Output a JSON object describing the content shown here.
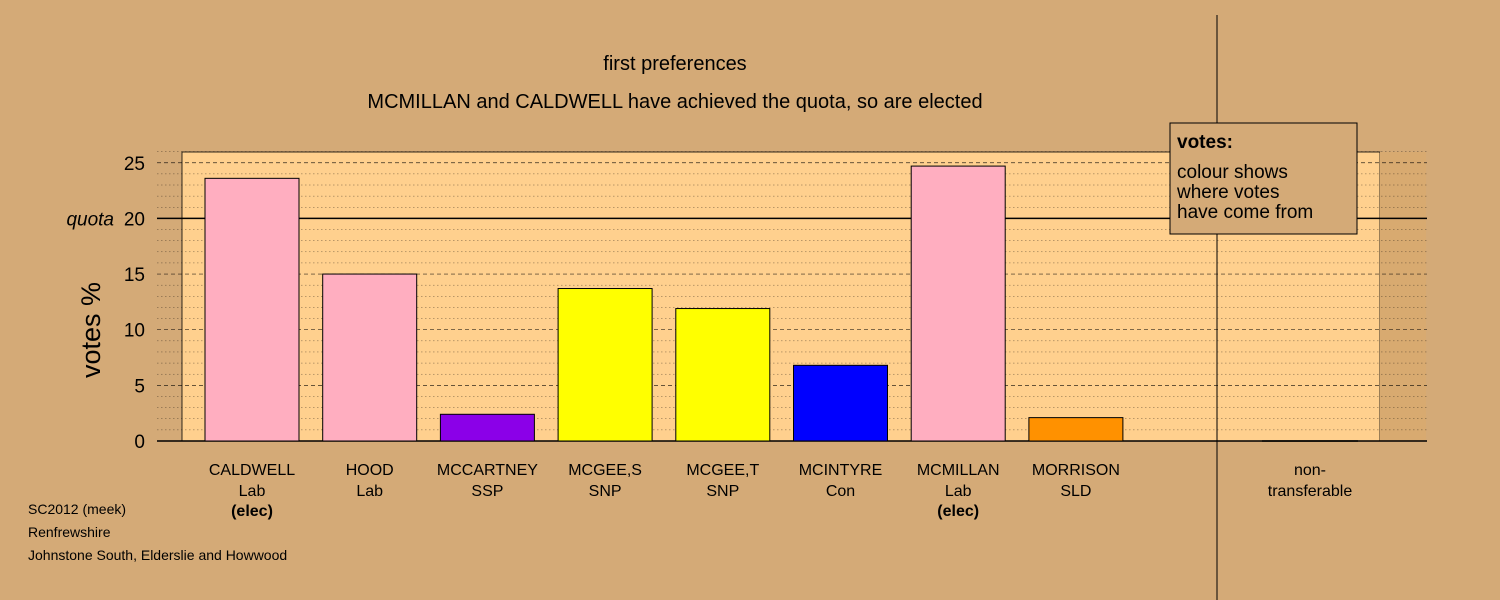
{
  "chart_data": {
    "type": "bar",
    "title": "first preferences",
    "subtitle": "MCMILLAN and CALDWELL have achieved the quota, so are elected",
    "ylabel": "votes %",
    "ylim": [
      0,
      26
    ],
    "yticks": [
      "0",
      "5",
      "10",
      "15",
      "20",
      "25"
    ],
    "quota": {
      "label": "quota",
      "value": 20
    },
    "grid": true,
    "categories": [
      {
        "name": "CALDWELL",
        "party": "Lab",
        "status": "(elec)",
        "value": 23.6,
        "color": "#ffaec0"
      },
      {
        "name": "HOOD",
        "party": "Lab",
        "status": "",
        "value": 15.0,
        "color": "#ffaec0"
      },
      {
        "name": "MCCARTNEY",
        "party": "SSP",
        "status": "",
        "value": 2.4,
        "color": "#8b00e8"
      },
      {
        "name": "MCGEE,S",
        "party": "SNP",
        "status": "",
        "value": 13.7,
        "color": "#ffff00"
      },
      {
        "name": "MCGEE,T",
        "party": "SNP",
        "status": "",
        "value": 11.9,
        "color": "#ffff00"
      },
      {
        "name": "MCINTYRE",
        "party": "Con",
        "status": "",
        "value": 6.8,
        "color": "#0000ff"
      },
      {
        "name": "MCMILLAN",
        "party": "Lab",
        "status": "(elec)",
        "value": 24.7,
        "color": "#ffaec0"
      },
      {
        "name": "MORRISON",
        "party": "SLD",
        "status": "",
        "value": 2.1,
        "color": "#ff9100"
      }
    ],
    "nontransferable": {
      "line1": "non-",
      "line2": "transferable",
      "value": 0
    },
    "legend": {
      "title": "votes:",
      "lines": [
        "colour shows",
        "where votes",
        "have come from"
      ],
      "position": "top-right"
    }
  },
  "footer": {
    "line1": "SC2012 (meek)",
    "line2": "Renfrewshire",
    "line3": "Johnstone South, Elderslie and Howwood"
  },
  "colors": {
    "background": "#d4aa77",
    "plot_area": "#ffd08e",
    "bar_outline": "#000000"
  }
}
